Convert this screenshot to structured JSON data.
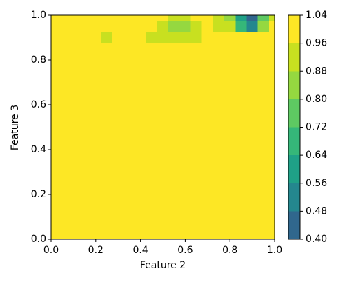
{
  "chart_data": {
    "type": "contour",
    "x_label": "Feature 2",
    "y_label": "Feature 3",
    "xlim": [
      0,
      1
    ],
    "ylim": [
      0,
      1
    ],
    "xticks": [
      {
        "value": 0,
        "label": "0.0"
      },
      0.2,
      0.4,
      0.6,
      0.8,
      {
        "value": 1,
        "label": "1.0"
      }
    ],
    "yticks": [
      {
        "value": 0,
        "label": "0.0"
      },
      0.2,
      0.4,
      0.6,
      0.8,
      {
        "value": 1,
        "label": "1.0"
      }
    ],
    "x": [
      0,
      0.05,
      0.1,
      0.15,
      0.2,
      0.25,
      0.3,
      0.35,
      0.4,
      0.45,
      0.5,
      0.55,
      0.6,
      0.65,
      0.7,
      0.75,
      0.8,
      0.85,
      0.9,
      0.95,
      1
    ],
    "y": [
      0,
      0.85,
      0.9,
      0.95,
      1
    ],
    "z": [
      [
        1,
        1,
        1,
        1,
        1,
        1,
        1,
        1,
        1,
        1,
        1,
        1,
        1,
        1,
        1,
        1,
        1,
        1,
        1,
        1,
        1
      ],
      [
        1,
        1,
        1,
        1,
        1,
        1,
        1,
        1,
        1,
        1,
        1,
        1,
        1,
        1,
        1,
        1,
        1,
        1,
        1,
        1,
        1
      ],
      [
        1,
        1,
        1,
        1,
        1,
        0.93,
        1,
        1,
        1,
        0.93,
        0.93,
        0.93,
        0.93,
        0.93,
        1,
        1,
        1,
        1,
        1,
        1,
        1
      ],
      [
        1,
        1,
        1,
        1,
        1,
        1,
        1,
        1,
        1,
        1,
        0.93,
        0.85,
        0.85,
        0.93,
        1,
        0.93,
        0.9,
        0.7,
        0.5,
        0.8,
        1
      ],
      [
        1,
        1,
        1,
        1,
        1,
        1,
        1,
        1,
        1,
        1,
        1,
        0.93,
        0.93,
        1,
        1,
        0.93,
        0.85,
        0.6,
        0.45,
        0.75,
        0.95
      ]
    ],
    "levels": [
      {
        "value": 0.4,
        "label": "0.40"
      },
      0.48,
      0.56,
      0.64,
      0.72,
      {
        "value": 0.8,
        "label": "0.80"
      },
      0.88,
      0.96,
      1.04
    ],
    "colors": [
      "#30678d",
      "#24878e",
      "#1fa187",
      "#35b779",
      "#5ec962",
      "#95d840",
      "#c8e020",
      "#fde725"
    ]
  }
}
